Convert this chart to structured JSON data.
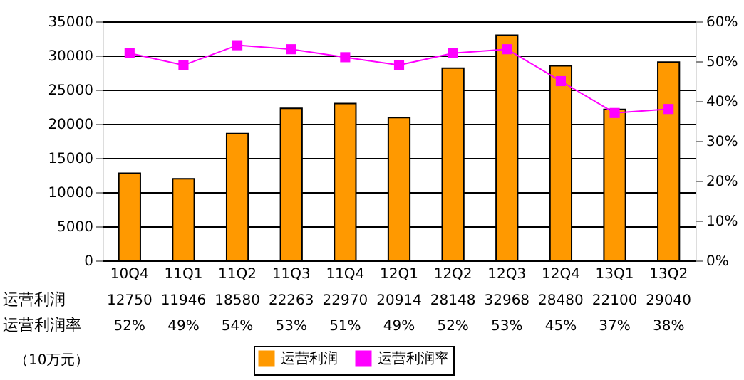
{
  "chart_data": {
    "type": "bar",
    "categories": [
      "10Q4",
      "11Q1",
      "11Q2",
      "11Q3",
      "11Q4",
      "12Q1",
      "12Q2",
      "12Q3",
      "12Q4",
      "13Q1",
      "13Q2"
    ],
    "series": [
      {
        "name": "运营利润",
        "color": "#ff9900",
        "values": [
          12750,
          11946,
          18580,
          22263,
          22970,
          20914,
          28148,
          32968,
          28480,
          22100,
          29040
        ],
        "value_labels": [
          "12750",
          "11946",
          "18580",
          "22263",
          "22970",
          "20914",
          "28148",
          "32968",
          "28480",
          "22100",
          "29040"
        ]
      },
      {
        "name": "运营利润率",
        "type": "line",
        "axis": "y2",
        "color": "#ff00ff",
        "marker": "square",
        "values": [
          52,
          49,
          54,
          53,
          51,
          49,
          52,
          53,
          45,
          37,
          38
        ],
        "value_labels": [
          "52%",
          "49%",
          "54%",
          "53%",
          "51%",
          "49%",
          "52%",
          "53%",
          "45%",
          "37%",
          "38%"
        ]
      }
    ],
    "ylim": [
      0,
      35000
    ],
    "yticks": [
      0,
      5000,
      10000,
      15000,
      20000,
      25000,
      30000,
      35000
    ],
    "y2lim": [
      0,
      60
    ],
    "y2ticks": [
      {
        "value": 0,
        "label": "0%"
      },
      {
        "value": 10,
        "label": "10%"
      },
      {
        "value": 20,
        "label": "20%"
      },
      {
        "value": 30,
        "label": "30%"
      },
      {
        "value": 40,
        "label": "40%"
      },
      {
        "value": 50,
        "label": "50%"
      },
      {
        "value": 60,
        "label": "60%"
      }
    ],
    "grid": "y",
    "legend": "bottom",
    "annotations": [
      "（10万元）"
    ]
  }
}
